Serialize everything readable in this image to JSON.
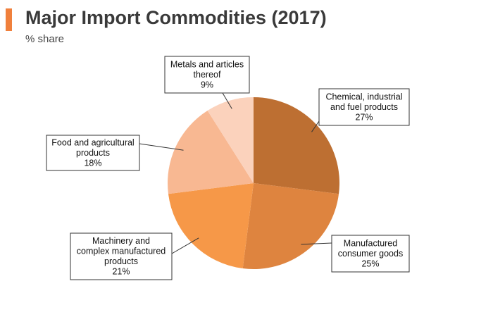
{
  "header": {
    "title": "Major Import Commodities (2017)",
    "subtitle": "% share",
    "accent_color": "#f0803c"
  },
  "chart_data": {
    "type": "pie",
    "title": "Major Import Commodities (2017)",
    "subtitle": "% share",
    "start": "12 o'clock",
    "direction": "clockwise",
    "slices": [
      {
        "label_lines": [
          "Chemical, industrial",
          "and fuel products"
        ],
        "label": "Chemical, industrial and fuel products",
        "value": 27,
        "value_label": "27%",
        "color": "#bd6f32"
      },
      {
        "label_lines": [
          "Manufactured",
          "consumer goods"
        ],
        "label": "Manufactured consumer goods",
        "value": 25,
        "value_label": "25%",
        "color": "#de843f"
      },
      {
        "label_lines": [
          "Machinery and",
          "complex manufactured",
          "products"
        ],
        "label": "Machinery and complex manufactured products",
        "value": 21,
        "value_label": "21%",
        "color": "#f69848"
      },
      {
        "label_lines": [
          "Food and agricultural",
          "products"
        ],
        "label": "Food and agricultural products",
        "value": 18,
        "value_label": "18%",
        "color": "#f8b892"
      },
      {
        "label_lines": [
          "Metals and articles",
          "thereof"
        ],
        "label": "Metals and articles thereof",
        "value": 9,
        "value_label": "9%",
        "color": "#fbd2bc"
      }
    ]
  }
}
